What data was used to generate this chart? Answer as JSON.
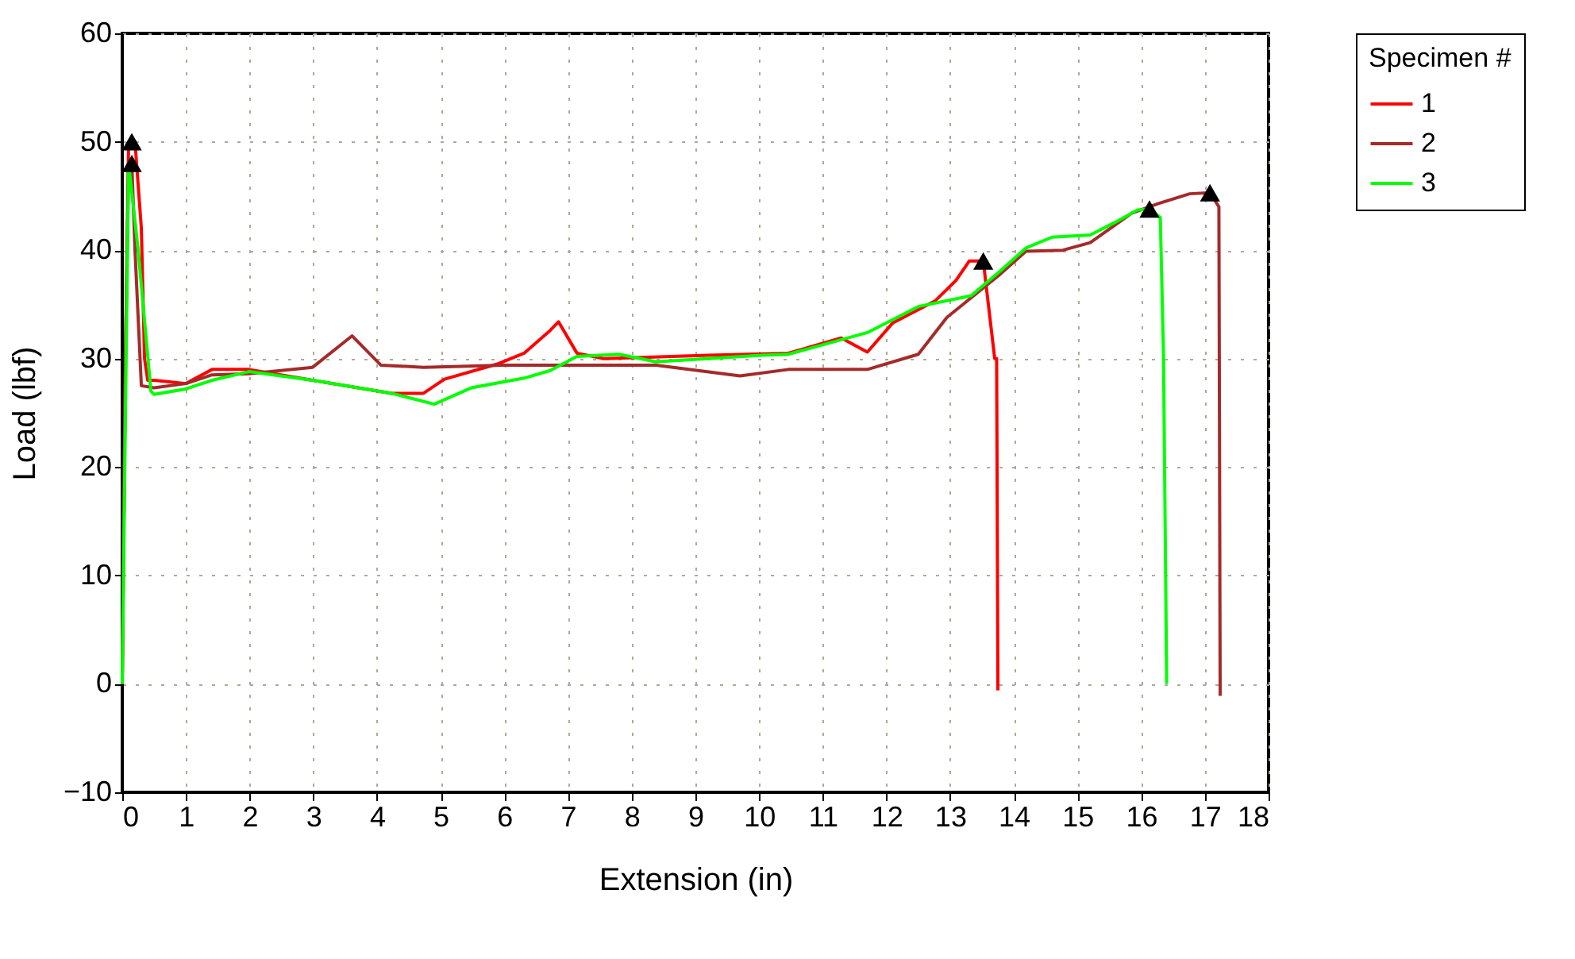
{
  "chart_data": {
    "type": "line",
    "xlabel": "Extension (in)",
    "ylabel": "Load (lbf)",
    "legend_title": "Specimen #",
    "legend": "right",
    "grid": true,
    "line_style": "solid",
    "marker": "none",
    "xlim": [
      0,
      18
    ],
    "xticks": [
      0,
      1,
      2,
      3,
      4,
      5,
      6,
      7,
      8,
      9,
      10,
      11,
      12,
      13,
      14,
      15,
      16,
      17,
      18
    ],
    "ylim": [
      -10,
      60
    ],
    "yticks": [
      -10,
      0,
      10,
      20,
      30,
      40,
      50,
      60
    ],
    "series": [
      {
        "name": "1",
        "color": "#ff0000",
        "x": [
          0,
          0.05,
          0.1,
          0.2,
          0.3,
          0.35,
          0.4,
          0.5,
          1.0,
          1.41,
          1.99,
          2.99,
          4.23,
          4.73,
          5.06,
          5.89,
          6.31,
          6.72,
          6.85,
          7.14,
          7.56,
          9.2,
          10.46,
          11.29,
          11.7,
          12.1,
          12.76,
          13.09,
          13.3,
          13.52,
          13.7,
          13.73,
          13.75
        ],
        "values": [
          0,
          30,
          50,
          50,
          42,
          30,
          28,
          28,
          27.7,
          29,
          29,
          28,
          26.8,
          26.8,
          28.1,
          29.5,
          30.5,
          32.6,
          33.4,
          30.5,
          30,
          30.3,
          30.5,
          31.9,
          30.6,
          33.3,
          35.3,
          37.2,
          39,
          39,
          30,
          30,
          -0.6
        ]
      },
      {
        "name": "2",
        "color": "#a52a2a",
        "x": [
          0,
          0.05,
          0.1,
          0.15,
          0.2,
          0.3,
          0.5,
          1.0,
          1.41,
          1.99,
          2.99,
          3.61,
          4.06,
          4.73,
          6.0,
          8.38,
          9.7,
          10.46,
          11.7,
          12.5,
          12.95,
          13.77,
          14.19,
          14.77,
          15.2,
          15.85,
          16.27,
          16.76,
          17.08,
          17.22,
          17.24
        ],
        "values": [
          0,
          30,
          48,
          48,
          40,
          27.5,
          27.3,
          27.7,
          28.5,
          28.6,
          29.2,
          32.1,
          29.4,
          29.2,
          29.4,
          29.4,
          28.4,
          29,
          29,
          30.4,
          33.8,
          37.7,
          39.9,
          40,
          40.7,
          43.4,
          44.3,
          45.2,
          45.3,
          44,
          -1.1
        ]
      },
      {
        "name": "3",
        "color": "#00ff00",
        "x": [
          0,
          0.05,
          0.1,
          0.25,
          0.45,
          0.5,
          1.0,
          1.41,
          1.99,
          2.99,
          4.23,
          4.9,
          5.48,
          6.31,
          6.72,
          7.14,
          7.8,
          8.38,
          10.04,
          10.46,
          11.7,
          12.5,
          13.33,
          13.77,
          14.19,
          14.6,
          15.2,
          15.6,
          15.94,
          16.13,
          16.3,
          16.35,
          16.4
        ],
        "values": [
          0,
          25,
          48,
          40,
          27,
          26.7,
          27.2,
          28,
          28.8,
          28,
          26.8,
          25.8,
          27.3,
          28.2,
          28.9,
          30.2,
          30.4,
          29.7,
          30.3,
          30.4,
          32.4,
          34.8,
          35.8,
          38,
          40.2,
          41.2,
          41.4,
          42.6,
          43.7,
          43.8,
          43,
          30.4,
          0
        ]
      },
      {
        "type": "scatter",
        "color": "#000000",
        "marker": "triangle",
        "x": [
          0.15,
          0.15,
          13.52,
          16.13,
          17.08
        ],
        "values": [
          50,
          48,
          39,
          43.8,
          45.3
        ]
      }
    ]
  }
}
